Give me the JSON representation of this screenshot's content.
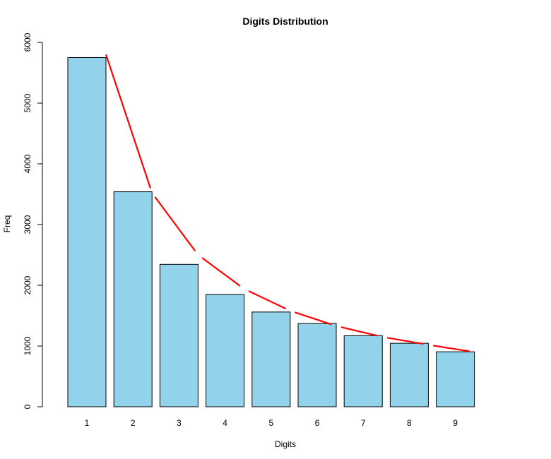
{
  "chart_data": {
    "type": "bar",
    "title": "Digits Distribution",
    "xlabel": "Digits",
    "ylabel": "Freq",
    "categories": [
      "1",
      "2",
      "3",
      "4",
      "5",
      "6",
      "7",
      "8",
      "9"
    ],
    "values": [
      5750,
      3540,
      2345,
      1850,
      1560,
      1370,
      1170,
      1045,
      905
    ],
    "ylim": [
      0,
      6000
    ],
    "yticks": [
      "0",
      "1000",
      "2000",
      "3000",
      "4000",
      "5000",
      "6000"
    ],
    "grid": false,
    "legend": "none",
    "bar_color": "#92D3EB",
    "bar_border_color": "#000000",
    "overlay_line": {
      "color": "#FF0000",
      "style": "segmented",
      "values": [
        5800,
        3520,
        2500,
        1940,
        1580,
        1330,
        1150,
        1020,
        900
      ]
    }
  }
}
